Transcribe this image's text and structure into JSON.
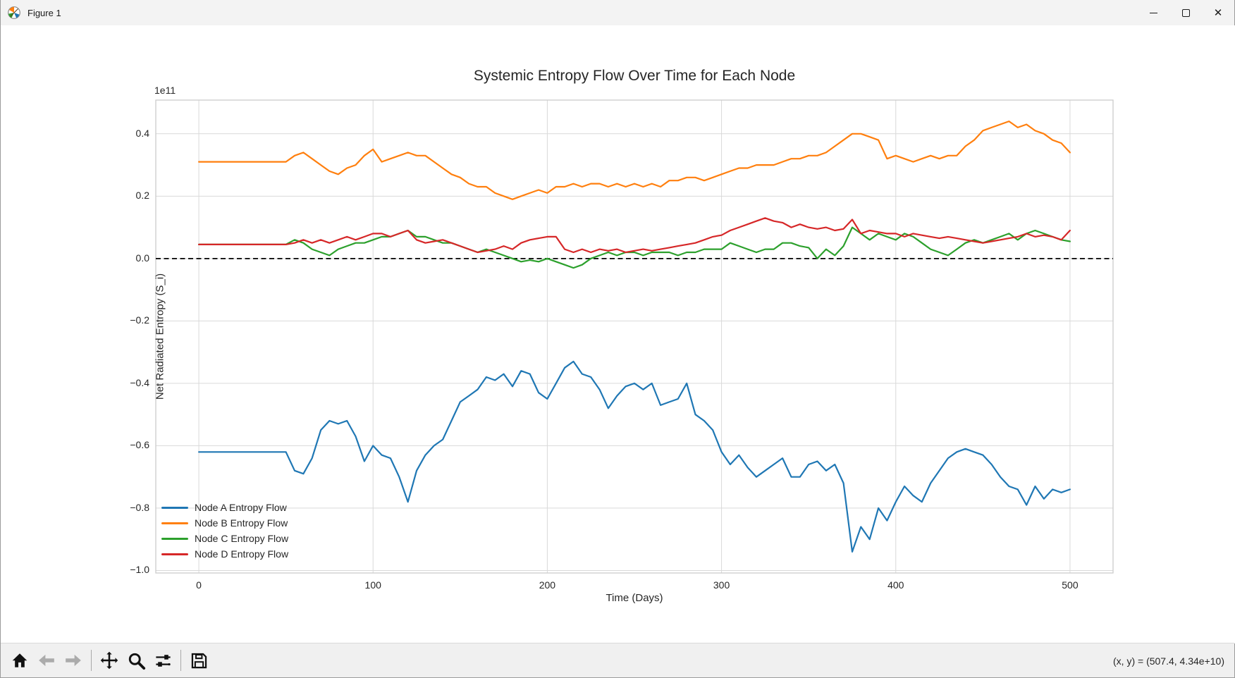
{
  "window": {
    "title": "Figure 1",
    "controls": [
      "minimize",
      "maximize",
      "close"
    ]
  },
  "toolbar": {
    "buttons": [
      {
        "name": "home",
        "enabled": true
      },
      {
        "name": "back",
        "enabled": false
      },
      {
        "name": "forward",
        "enabled": false
      },
      {
        "name": "pan",
        "enabled": true
      },
      {
        "name": "zoom",
        "enabled": true
      },
      {
        "name": "configure-subplots",
        "enabled": true
      },
      {
        "name": "save",
        "enabled": true
      }
    ],
    "readout": "(x, y) = (507.4, 4.34e+10)"
  },
  "chart_data": {
    "type": "line",
    "title": "Systemic Entropy Flow Over Time for Each Node",
    "xlabel": "Time (Days)",
    "ylabel": "Net Radiated Entropy (S_i)",
    "offset_text": "1e11",
    "unit_multiplier": 100000000000.0,
    "grid": true,
    "legend_position": "lower left",
    "xlim": [
      -24.7,
      524.7
    ],
    "ylim": [
      -1.008,
      0.508
    ],
    "x_ticks": [
      0,
      100,
      200,
      300,
      400,
      500
    ],
    "x_tick_labels": [
      "0",
      "100",
      "200",
      "300",
      "400",
      "500"
    ],
    "y_ticks": [
      0.4,
      0.2,
      0.0,
      -0.2,
      -0.4,
      -0.6,
      -0.8,
      -1.0
    ],
    "y_tick_labels": [
      "0.4",
      "0.2",
      "0.0",
      "−0.2",
      "−0.4",
      "−0.6",
      "−0.8",
      "−1.0"
    ],
    "zero_line": {
      "y": 0.0,
      "style": "dashed",
      "color": "#000000"
    },
    "grid_color": "#d9d9d9",
    "spine_color": "#cbcbcb",
    "x": [
      0,
      5,
      10,
      15,
      20,
      25,
      30,
      35,
      40,
      45,
      50,
      55,
      60,
      65,
      70,
      75,
      80,
      85,
      90,
      95,
      100,
      105,
      110,
      115,
      120,
      125,
      130,
      135,
      140,
      145,
      150,
      155,
      160,
      165,
      170,
      175,
      180,
      185,
      190,
      195,
      200,
      205,
      210,
      215,
      220,
      225,
      230,
      235,
      240,
      245,
      250,
      255,
      260,
      265,
      270,
      275,
      280,
      285,
      290,
      295,
      300,
      305,
      310,
      315,
      320,
      325,
      330,
      335,
      340,
      345,
      350,
      355,
      360,
      365,
      370,
      375,
      380,
      385,
      390,
      395,
      400,
      405,
      410,
      415,
      420,
      425,
      430,
      435,
      440,
      445,
      450,
      455,
      460,
      465,
      470,
      475,
      480,
      485,
      490,
      495,
      500
    ],
    "series": [
      {
        "name": "Node A Entropy Flow",
        "color": "#1f77b4",
        "values": [
          -0.62,
          -0.62,
          -0.62,
          -0.62,
          -0.62,
          -0.62,
          -0.62,
          -0.62,
          -0.62,
          -0.62,
          -0.62,
          -0.68,
          -0.69,
          -0.64,
          -0.55,
          -0.52,
          -0.53,
          -0.52,
          -0.57,
          -0.65,
          -0.6,
          -0.63,
          -0.64,
          -0.7,
          -0.78,
          -0.68,
          -0.63,
          -0.6,
          -0.58,
          -0.52,
          -0.46,
          -0.44,
          -0.42,
          -0.38,
          -0.39,
          -0.37,
          -0.41,
          -0.36,
          -0.37,
          -0.43,
          -0.45,
          -0.4,
          -0.35,
          -0.33,
          -0.37,
          -0.38,
          -0.42,
          -0.48,
          -0.44,
          -0.41,
          -0.4,
          -0.42,
          -0.4,
          -0.47,
          -0.46,
          -0.45,
          -0.4,
          -0.5,
          -0.52,
          -0.55,
          -0.62,
          -0.66,
          -0.63,
          -0.67,
          -0.7,
          -0.68,
          -0.66,
          -0.64,
          -0.7,
          -0.7,
          -0.66,
          -0.65,
          -0.68,
          -0.66,
          -0.72,
          -0.94,
          -0.86,
          -0.9,
          -0.8,
          -0.84,
          -0.78,
          -0.73,
          -0.76,
          -0.78,
          -0.72,
          -0.68,
          -0.64,
          -0.62,
          -0.61,
          -0.62,
          -0.63,
          -0.66,
          -0.7,
          -0.73,
          -0.74,
          -0.79,
          -0.73,
          -0.77,
          -0.74,
          -0.75,
          -0.74
        ]
      },
      {
        "name": "Node B Entropy Flow",
        "color": "#ff7f0e",
        "values": [
          0.31,
          0.31,
          0.31,
          0.31,
          0.31,
          0.31,
          0.31,
          0.31,
          0.31,
          0.31,
          0.31,
          0.33,
          0.34,
          0.32,
          0.3,
          0.28,
          0.27,
          0.29,
          0.3,
          0.33,
          0.35,
          0.31,
          0.32,
          0.33,
          0.34,
          0.33,
          0.33,
          0.31,
          0.29,
          0.27,
          0.26,
          0.24,
          0.23,
          0.23,
          0.21,
          0.2,
          0.19,
          0.2,
          0.21,
          0.22,
          0.21,
          0.23,
          0.23,
          0.24,
          0.23,
          0.24,
          0.24,
          0.23,
          0.24,
          0.23,
          0.24,
          0.23,
          0.24,
          0.23,
          0.25,
          0.25,
          0.26,
          0.26,
          0.25,
          0.26,
          0.27,
          0.28,
          0.29,
          0.29,
          0.3,
          0.3,
          0.3,
          0.31,
          0.32,
          0.32,
          0.33,
          0.33,
          0.34,
          0.36,
          0.38,
          0.4,
          0.4,
          0.39,
          0.38,
          0.32,
          0.33,
          0.32,
          0.31,
          0.32,
          0.33,
          0.32,
          0.33,
          0.33,
          0.36,
          0.38,
          0.41,
          0.42,
          0.43,
          0.44,
          0.42,
          0.43,
          0.41,
          0.4,
          0.38,
          0.37,
          0.34
        ]
      },
      {
        "name": "Node C Entropy Flow",
        "color": "#2ca02c",
        "values": [
          0.045,
          0.045,
          0.045,
          0.045,
          0.045,
          0.045,
          0.045,
          0.045,
          0.045,
          0.045,
          0.045,
          0.06,
          0.05,
          0.03,
          0.02,
          0.01,
          0.03,
          0.04,
          0.05,
          0.05,
          0.06,
          0.07,
          0.07,
          0.08,
          0.09,
          0.07,
          0.07,
          0.06,
          0.05,
          0.05,
          0.04,
          0.03,
          0.02,
          0.03,
          0.02,
          0.01,
          0.0,
          -0.01,
          -0.005,
          -0.01,
          0.0,
          -0.01,
          -0.02,
          -0.03,
          -0.02,
          0.0,
          0.01,
          0.02,
          0.01,
          0.02,
          0.02,
          0.01,
          0.02,
          0.02,
          0.02,
          0.01,
          0.02,
          0.02,
          0.03,
          0.03,
          0.03,
          0.05,
          0.04,
          0.03,
          0.02,
          0.03,
          0.03,
          0.05,
          0.05,
          0.04,
          0.035,
          0.0,
          0.03,
          0.01,
          0.04,
          0.1,
          0.08,
          0.06,
          0.08,
          0.07,
          0.06,
          0.08,
          0.07,
          0.05,
          0.03,
          0.02,
          0.01,
          0.03,
          0.05,
          0.06,
          0.05,
          0.06,
          0.07,
          0.08,
          0.06,
          0.08,
          0.09,
          0.08,
          0.07,
          0.06,
          0.055
        ]
      },
      {
        "name": "Node D Entropy Flow",
        "color": "#d62728",
        "values": [
          0.045,
          0.045,
          0.045,
          0.045,
          0.045,
          0.045,
          0.045,
          0.045,
          0.045,
          0.045,
          0.045,
          0.05,
          0.06,
          0.05,
          0.06,
          0.05,
          0.06,
          0.07,
          0.06,
          0.07,
          0.08,
          0.08,
          0.07,
          0.08,
          0.09,
          0.06,
          0.05,
          0.055,
          0.06,
          0.05,
          0.04,
          0.03,
          0.02,
          0.025,
          0.03,
          0.04,
          0.03,
          0.05,
          0.06,
          0.065,
          0.07,
          0.07,
          0.03,
          0.02,
          0.03,
          0.02,
          0.03,
          0.025,
          0.03,
          0.02,
          0.025,
          0.03,
          0.025,
          0.03,
          0.035,
          0.04,
          0.045,
          0.05,
          0.06,
          0.07,
          0.075,
          0.09,
          0.1,
          0.11,
          0.12,
          0.13,
          0.12,
          0.115,
          0.1,
          0.11,
          0.1,
          0.095,
          0.1,
          0.09,
          0.095,
          0.125,
          0.08,
          0.09,
          0.085,
          0.08,
          0.08,
          0.07,
          0.08,
          0.075,
          0.07,
          0.065,
          0.07,
          0.065,
          0.06,
          0.055,
          0.05,
          0.055,
          0.06,
          0.065,
          0.07,
          0.08,
          0.07,
          0.075,
          0.07,
          0.06,
          0.09
        ]
      }
    ]
  }
}
